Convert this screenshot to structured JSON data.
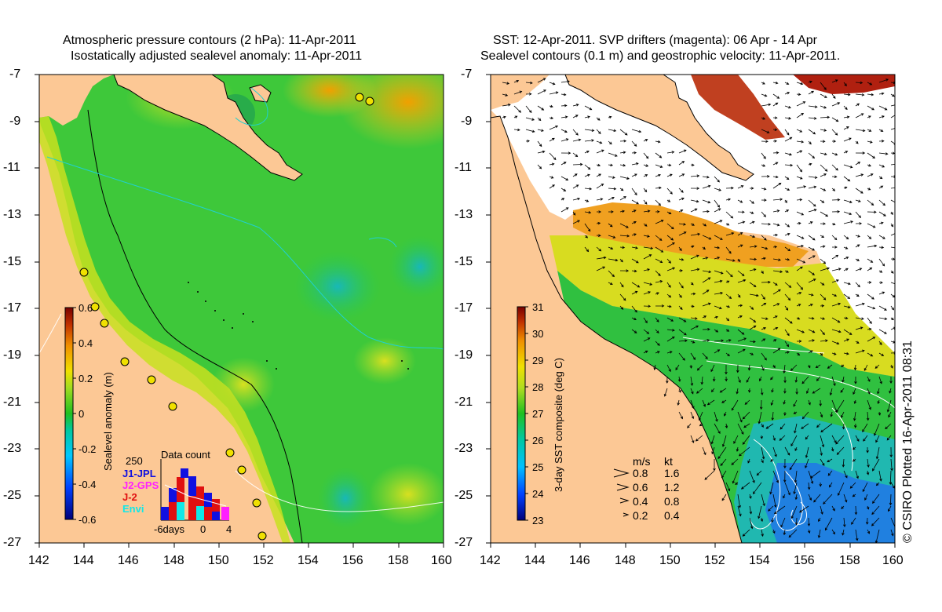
{
  "left_panel": {
    "title_line1": "Atmospheric pressure contours (2 hPa): 11-Apr-2011",
    "title_line2": "Isostatically adjusted sealevel anomaly: 11-Apr-2011",
    "colorbar_label": "Sealevel anomaly (m)",
    "colorbar_ticks": [
      "0.6",
      "0.4",
      "0.2",
      "0",
      "-0.2",
      "-0.4",
      "-0.6"
    ],
    "colorbar_range": [
      -0.6,
      0.6
    ],
    "data_count": {
      "title": "Data count",
      "max_label": "250",
      "satellites": [
        {
          "name": "J1-JPL",
          "color": "#1010e0"
        },
        {
          "name": "J2-GPS",
          "color": "#ff20ff"
        },
        {
          "name": "J-2",
          "color": "#e01010"
        },
        {
          "name": "Envi",
          "color": "#10e8e8"
        }
      ],
      "x_labels": [
        "-6days",
        "0",
        "4"
      ]
    }
  },
  "right_panel": {
    "title_line1": "SST: 12-Apr-2011. SVP drifters (magenta): 06 Apr - 14 Apr",
    "title_line2": "Sealevel contours (0.1 m) and geostrophic velocity: 11-Apr-2011.",
    "colorbar_label": "3-day SST composite (deg C)",
    "colorbar_ticks": [
      "31",
      "30",
      "29",
      "28",
      "27",
      "26",
      "25",
      "24",
      "23"
    ],
    "colorbar_range": [
      23,
      31
    ],
    "velocity_legend": {
      "header_ms": "m/s",
      "header_kt": "kt",
      "rows": [
        {
          "ms": "0.8",
          "kt": "1.6"
        },
        {
          "ms": "0.6",
          "kt": "1.2"
        },
        {
          "ms": "0.4",
          "kt": "0.8"
        },
        {
          "ms": "0.2",
          "kt": "0.4"
        }
      ]
    }
  },
  "axes": {
    "lat_ticks": [
      "-7",
      "-9",
      "-11",
      "-13",
      "-15",
      "-17",
      "-19",
      "-21",
      "-23",
      "-25",
      "-27"
    ],
    "lon_ticks": [
      "142",
      "144",
      "146",
      "148",
      "150",
      "152",
      "154",
      "156",
      "158",
      "160"
    ]
  },
  "credit": "© CSIRO Plotted 16-Apr-2011 08:31",
  "colors": {
    "land": "#fcc895",
    "ocean_green": "#2ec82e",
    "ocean_yellow": "#d8e020",
    "ocean_orange": "#f0a010",
    "cyan": "#20d0c8"
  }
}
